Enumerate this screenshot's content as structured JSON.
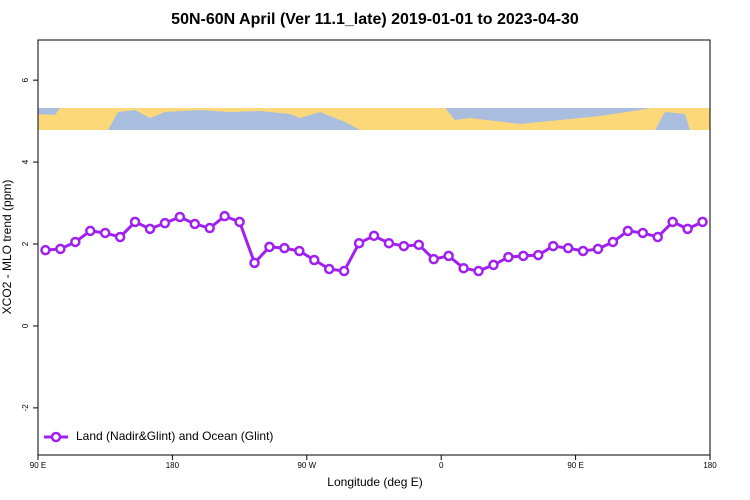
{
  "chart_data": {
    "type": "line",
    "title": "50N-60N April (Ver 11.1_late)   2019-01-01 to 2023-04-30",
    "xlabel": "Longitude (deg E)",
    "ylabel": "XCO2 - MLO trend (ppm)",
    "x": [
      95,
      105,
      115,
      125,
      135,
      145,
      155,
      165,
      175,
      185,
      195,
      205,
      215,
      225,
      235,
      245,
      255,
      265,
      275,
      285,
      295,
      305,
      315,
      325,
      335,
      345,
      355,
      365,
      375,
      385,
      395,
      405,
      415,
      425,
      435,
      445,
      455,
      465,
      475,
      485,
      495,
      505,
      515,
      525,
      535
    ],
    "series": [
      {
        "name": "Land (Nadir&Glint) and Ocean (Glint)",
        "color": "#a020f0",
        "values": [
          1.85,
          1.88,
          2.05,
          2.32,
          2.27,
          2.17,
          2.54,
          2.37,
          2.51,
          2.66,
          2.49,
          2.39,
          2.68,
          2.54,
          1.54,
          1.93,
          1.9,
          1.83,
          1.61,
          1.39,
          1.34,
          2.02,
          2.2,
          2.02,
          1.95,
          1.98,
          1.63,
          1.71,
          1.41,
          1.34,
          1.49,
          1.68,
          1.71,
          1.73,
          1.95,
          1.9,
          1.83,
          1.88,
          2.05,
          2.32,
          2.27,
          2.17,
          2.54,
          2.37,
          2.54
        ]
      }
    ],
    "xlim": [
      90,
      540
    ],
    "xticks": [
      {
        "value": 90,
        "label": "90 E"
      },
      {
        "value": 180,
        "label": "180"
      },
      {
        "value": 270,
        "label": "90 W"
      },
      {
        "value": 360,
        "label": "0"
      },
      {
        "value": 450,
        "label": "90 E"
      },
      {
        "value": 540,
        "label": "180"
      }
    ],
    "ylim": [
      -3.15,
      6.98
    ],
    "yticks": [
      -2,
      0,
      2,
      4,
      6
    ],
    "grid": false,
    "legend_position": "bottomleft"
  }
}
